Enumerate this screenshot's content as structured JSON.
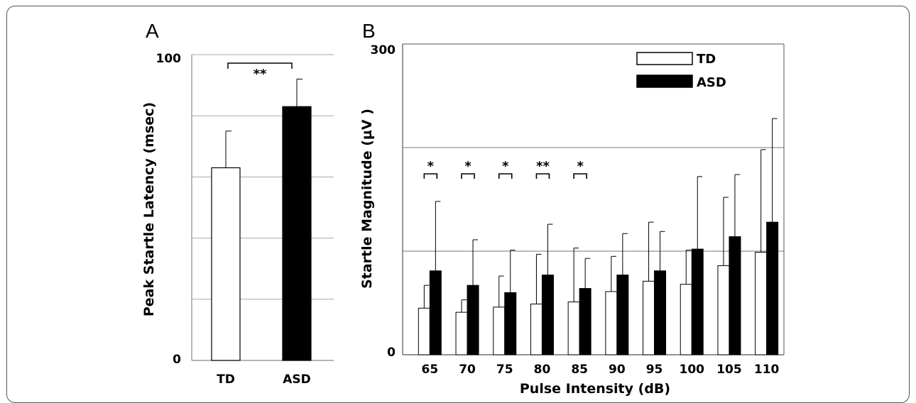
{
  "chart_data": [
    {
      "panel": "A",
      "type": "bar",
      "categories": [
        "TD",
        "ASD"
      ],
      "values": [
        63,
        83
      ],
      "errors": [
        12,
        9
      ],
      "ylabel": "Peak Startle Latency (msec)",
      "ylim": [
        0,
        100
      ],
      "yticks": [
        "0",
        "100"
      ],
      "grid": true,
      "colors": [
        "#ffffff",
        "#000000"
      ],
      "significance": [
        {
          "from": "TD",
          "to": "ASD",
          "label": "**"
        }
      ]
    },
    {
      "panel": "B",
      "type": "bar",
      "categories": [
        "65",
        "70",
        "75",
        "80",
        "85",
        "90",
        "95",
        "100",
        "105",
        "110"
      ],
      "series": [
        {
          "name": "TD",
          "color": "#ffffff",
          "values": [
            45,
            41,
            46,
            49,
            51,
            61,
            71,
            68,
            86,
            99
          ],
          "errors": [
            22,
            12,
            30,
            48,
            52,
            34,
            57,
            33,
            66,
            99
          ]
        },
        {
          "name": "ASD",
          "color": "#000000",
          "values": [
            81,
            67,
            60,
            77,
            64,
            77,
            81,
            102,
            114,
            128
          ],
          "errors": [
            67,
            44,
            41,
            49,
            29,
            40,
            38,
            70,
            60,
            100
          ]
        }
      ],
      "xlabel": "Pulse Intensity (dB)",
      "ylabel": "Startle Magnitude (µV )",
      "ylim": [
        0,
        300
      ],
      "yticks": [
        "0",
        "300"
      ],
      "grid": true,
      "legend": "top-right",
      "significance": [
        {
          "category": "65",
          "label": "*"
        },
        {
          "category": "70",
          "label": "*"
        },
        {
          "category": "75",
          "label": "*"
        },
        {
          "category": "80",
          "label": "**"
        },
        {
          "category": "85",
          "label": "*"
        }
      ]
    }
  ]
}
